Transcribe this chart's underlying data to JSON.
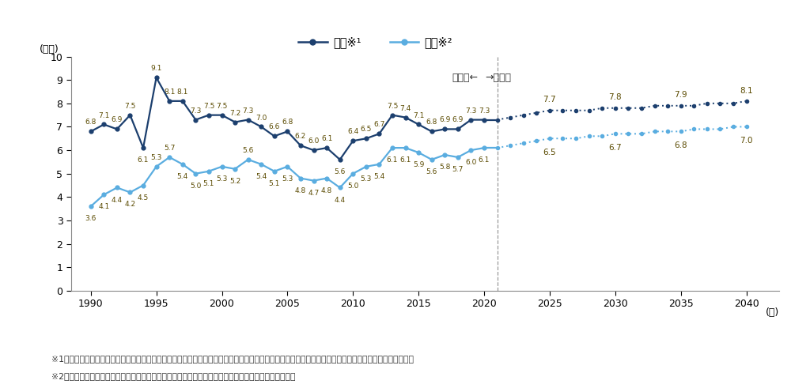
{
  "ylabel": "(兆円)",
  "xlabel": "(年)",
  "ylim": [
    0,
    10
  ],
  "yticks": [
    0,
    1,
    2,
    3,
    4,
    5,
    6,
    7,
    8,
    9,
    10
  ],
  "xticks": [
    1990,
    1995,
    2000,
    2005,
    2010,
    2015,
    2020,
    2025,
    2030,
    2035,
    2040
  ],
  "dashed_line_x": 2021,
  "hirogi_actual_years": [
    1990,
    1991,
    1992,
    1993,
    1994,
    1995,
    1996,
    1997,
    1998,
    1999,
    2000,
    2001,
    2002,
    2003,
    2004,
    2005,
    2006,
    2007,
    2008,
    2009,
    2010,
    2011,
    2012,
    2013,
    2014,
    2015,
    2016,
    2017,
    2018,
    2019,
    2020
  ],
  "hirogi_actual_values": [
    6.8,
    7.1,
    6.9,
    7.5,
    6.1,
    9.1,
    8.1,
    8.1,
    7.3,
    7.5,
    7.5,
    7.2,
    7.3,
    7.0,
    6.6,
    6.8,
    6.2,
    6.0,
    6.1,
    5.6,
    6.4,
    6.5,
    6.7,
    7.5,
    7.4,
    7.1,
    6.8,
    6.9,
    6.9,
    7.3,
    7.3
  ],
  "hirogi_forecast_years": [
    2021,
    2022,
    2023,
    2024,
    2025,
    2026,
    2027,
    2028,
    2029,
    2030,
    2031,
    2032,
    2033,
    2034,
    2035,
    2036,
    2037,
    2038,
    2039,
    2040
  ],
  "hirogi_forecast_values": [
    7.3,
    7.4,
    7.5,
    7.6,
    7.7,
    7.7,
    7.7,
    7.7,
    7.8,
    7.8,
    7.8,
    7.8,
    7.9,
    7.9,
    7.9,
    7.9,
    8.0,
    8.0,
    8.0,
    8.1
  ],
  "kyogi_actual_years": [
    1990,
    1991,
    1992,
    1993,
    1994,
    1995,
    1996,
    1997,
    1998,
    1999,
    2000,
    2001,
    2002,
    2003,
    2004,
    2005,
    2006,
    2007,
    2008,
    2009,
    2010,
    2011,
    2012,
    2013,
    2014,
    2015,
    2016,
    2017,
    2018,
    2019,
    2020
  ],
  "kyogi_actual_values": [
    3.6,
    4.1,
    4.4,
    4.2,
    4.5,
    5.3,
    5.7,
    5.4,
    5.0,
    5.1,
    5.3,
    5.2,
    5.6,
    5.4,
    5.1,
    5.3,
    4.8,
    4.7,
    4.8,
    4.4,
    5.0,
    5.3,
    5.4,
    6.1,
    6.1,
    5.9,
    5.6,
    5.8,
    5.7,
    6.0,
    6.1
  ],
  "kyogi_forecast_years": [
    2021,
    2022,
    2023,
    2024,
    2025,
    2026,
    2027,
    2028,
    2029,
    2030,
    2031,
    2032,
    2033,
    2034,
    2035,
    2036,
    2037,
    2038,
    2039,
    2040
  ],
  "kyogi_forecast_values": [
    6.1,
    6.2,
    6.3,
    6.4,
    6.5,
    6.5,
    6.5,
    6.6,
    6.6,
    6.7,
    6.7,
    6.7,
    6.8,
    6.8,
    6.8,
    6.9,
    6.9,
    6.9,
    7.0,
    7.0
  ],
  "hirogi_color": "#1c3f6e",
  "kyogi_color": "#5aade0",
  "label_color": "#5a4a00",
  "legend_hirogi": "広義※¹",
  "legend_kyogi": "狭義※²",
  "hirogi_labels": {
    "1990": "6.8",
    "1991": "7.1",
    "1992": "6.9",
    "1993": "7.5",
    "1994": "6.1",
    "1995": "9.1",
    "1996": "8.1",
    "1997": "8.1",
    "1998": "7.3",
    "1999": "7.5",
    "2000": "7.5",
    "2001": "7.2",
    "2002": "7.3",
    "2003": "7.0",
    "2004": "6.6",
    "2005": "6.8",
    "2006": "6.2",
    "2007": "6.0",
    "2008": "6.1",
    "2009": "5.6",
    "2010": "6.4",
    "2011": "6.5",
    "2012": "6.7",
    "2013": "7.5",
    "2014": "7.4",
    "2015": "7.1",
    "2016": "6.8",
    "2017": "6.9",
    "2018": "6.9",
    "2019": "7.3",
    "2020": "7.3"
  },
  "kyogi_labels": {
    "1990": "3.6",
    "1991": "4.1",
    "1992": "4.4",
    "1993": "4.2",
    "1994": "4.5",
    "1995": "5.3",
    "1996": "5.7",
    "1997": "5.4",
    "1998": "5.0",
    "1999": "5.1",
    "2000": "5.3",
    "2001": "5.2",
    "2002": "5.6",
    "2003": "5.4",
    "2004": "5.1",
    "2005": "5.3",
    "2006": "4.8",
    "2007": "4.7",
    "2008": "4.8",
    "2009": "4.4",
    "2010": "5.0",
    "2011": "5.3",
    "2012": "5.4",
    "2013": "6.1",
    "2014": "6.1",
    "2015": "5.9",
    "2016": "5.6",
    "2017": "5.8",
    "2018": "5.7",
    "2019": "6.0",
    "2020": "6.1"
  },
  "hirogi_label_above": [
    1990,
    1991,
    1992,
    1993,
    1995,
    1996,
    1997,
    1998,
    1999,
    2000,
    2001,
    2002,
    2003,
    2004,
    2005,
    2006,
    2007,
    2008,
    2010,
    2011,
    2012,
    2013,
    2014,
    2015,
    2016,
    2017,
    2018,
    2019,
    2020
  ],
  "hirogi_label_below": [
    1994,
    2009
  ],
  "kyogi_label_below": [
    1990,
    1991,
    1992,
    1993,
    1994,
    1995,
    1996,
    1997,
    1998,
    1999,
    2000,
    2001,
    2002,
    2003,
    2004,
    2005,
    2006,
    2007,
    2008,
    2009,
    2010,
    2011,
    2012,
    2013,
    2014,
    2015,
    2016,
    2017,
    2018,
    2019,
    2020
  ],
  "forecast_labels_hirogi": {
    "2025": "7.7",
    "2030": "7.8",
    "2035": "7.9",
    "2040": "8.1"
  },
  "forecast_labels_kyogi": {
    "2025": "6.5",
    "2030": "6.7",
    "2035": "6.8",
    "2040": "7.0"
  },
  "jisseki_text": "実績値←",
  "yosoku_text": "→予測値",
  "note1": "※1　広義：狭義のリフォーム市場規模に「エアコンや家具等のリフォームに関連する耕久消費財、インテリア商品等の購入費を含めた金額」を加えたもの",
  "note2": "※2　狭義：「住宅着工統計上『新設住宅』に計上される増範・改範工事」及び「設備等の修纕維持費」"
}
